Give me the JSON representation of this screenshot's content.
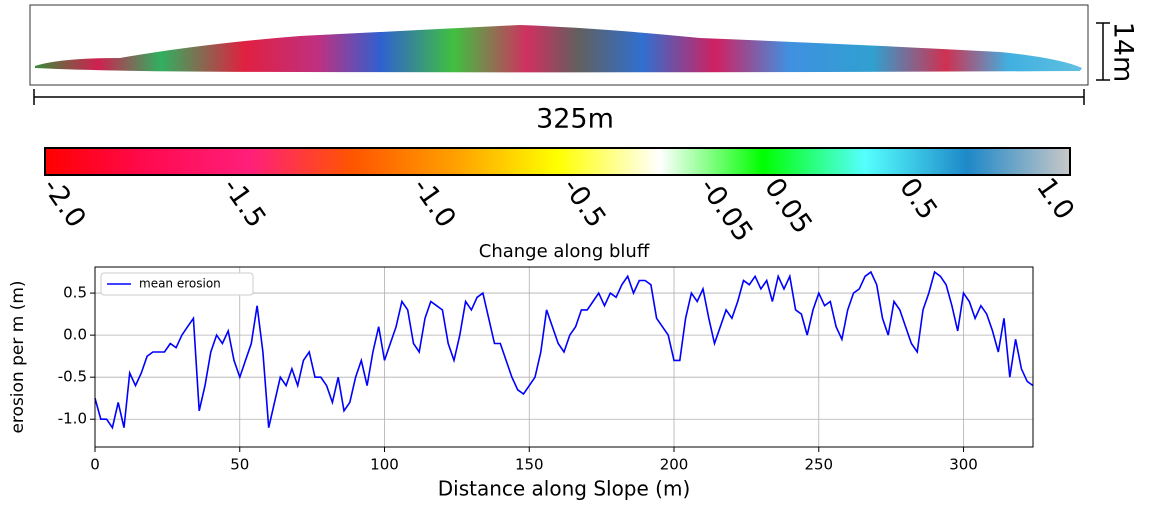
{
  "figure": {
    "width_label": "325m",
    "height_label": "14m"
  },
  "chart_data": [
    {
      "type": "colorbar",
      "colors": [
        "#ff0000",
        "#ff0a50",
        "#ff1f7a",
        "#ff5500",
        "#ffa000",
        "#ffff00",
        "#ffffff",
        "#00ff00",
        "#55ffff",
        "#1e88c8",
        "#c8c8c8"
      ],
      "ticks": [
        {
          "value": -2.0,
          "label": "-2.0"
        },
        -1.5,
        {
          "value": -1.0,
          "label": "-1.0"
        },
        -0.5,
        -0.05,
        0.05,
        0.5,
        {
          "value": 1.0,
          "label": "1.0"
        }
      ]
    },
    {
      "type": "line",
      "title": "Change along bluff",
      "xlabel": "Distance along Slope (m)",
      "ylabel": "erosion per m (m)",
      "x": [
        0,
        2,
        4,
        6,
        8,
        10,
        12,
        14,
        16,
        18,
        20,
        22,
        24,
        26,
        28,
        30,
        32,
        34,
        36,
        38,
        40,
        42,
        44,
        46,
        48,
        50,
        52,
        54,
        56,
        58,
        60,
        62,
        64,
        66,
        68,
        70,
        72,
        74,
        76,
        78,
        80,
        82,
        84,
        86,
        88,
        90,
        92,
        94,
        96,
        98,
        100,
        102,
        104,
        106,
        108,
        110,
        112,
        114,
        116,
        118,
        120,
        122,
        124,
        126,
        128,
        130,
        132,
        134,
        136,
        138,
        140,
        142,
        144,
        146,
        148,
        150,
        152,
        154,
        156,
        158,
        160,
        162,
        164,
        166,
        168,
        170,
        172,
        174,
        176,
        178,
        180,
        182,
        184,
        186,
        188,
        190,
        192,
        194,
        196,
        198,
        200,
        202,
        204,
        206,
        208,
        210,
        212,
        214,
        216,
        218,
        220,
        222,
        224,
        226,
        228,
        230,
        232,
        234,
        236,
        238,
        240,
        242,
        244,
        246,
        248,
        250,
        252,
        254,
        256,
        258,
        260,
        262,
        264,
        266,
        268,
        270,
        272,
        274,
        276,
        278,
        280,
        282,
        284,
        286,
        288,
        290,
        292,
        294,
        296,
        298,
        300,
        302,
        304,
        306,
        308,
        310,
        312,
        314,
        316,
        318,
        320,
        322,
        324
      ],
      "series": [
        {
          "name": "mean erosion",
          "color": "#0000ff",
          "values": [
            -0.75,
            -1.0,
            -1.0,
            -1.1,
            -0.8,
            -1.1,
            -0.45,
            -0.6,
            -0.45,
            -0.25,
            -0.2,
            -0.2,
            -0.2,
            -0.1,
            -0.15,
            0.0,
            0.1,
            0.2,
            -0.9,
            -0.6,
            -0.2,
            0.0,
            -0.1,
            0.05,
            -0.3,
            -0.5,
            -0.3,
            -0.1,
            0.35,
            -0.2,
            -1.1,
            -0.8,
            -0.5,
            -0.6,
            -0.4,
            -0.6,
            -0.3,
            -0.2,
            -0.5,
            -0.5,
            -0.6,
            -0.8,
            -0.5,
            -0.9,
            -0.8,
            -0.5,
            -0.3,
            -0.6,
            -0.2,
            0.1,
            -0.3,
            -0.1,
            0.1,
            0.4,
            0.3,
            -0.1,
            -0.2,
            0.2,
            0.4,
            0.35,
            0.3,
            -0.1,
            -0.3,
            0.0,
            0.4,
            0.3,
            0.45,
            0.5,
            0.2,
            -0.1,
            -0.1,
            -0.3,
            -0.5,
            -0.65,
            -0.7,
            -0.6,
            -0.5,
            -0.2,
            0.3,
            0.1,
            -0.1,
            -0.2,
            0.0,
            0.1,
            0.3,
            0.3,
            0.4,
            0.5,
            0.35,
            0.5,
            0.45,
            0.6,
            0.7,
            0.5,
            0.65,
            0.65,
            0.6,
            0.2,
            0.1,
            0.0,
            -0.3,
            -0.3,
            0.2,
            0.5,
            0.4,
            0.55,
            0.2,
            -0.1,
            0.1,
            0.3,
            0.2,
            0.4,
            0.65,
            0.6,
            0.7,
            0.55,
            0.65,
            0.4,
            0.7,
            0.55,
            0.7,
            0.3,
            0.25,
            0.0,
            0.3,
            0.5,
            0.35,
            0.4,
            0.1,
            -0.05,
            0.3,
            0.5,
            0.55,
            0.7,
            0.75,
            0.6,
            0.2,
            0.0,
            0.4,
            0.3,
            0.1,
            -0.1,
            -0.2,
            0.3,
            0.5,
            0.75,
            0.7,
            0.6,
            0.35,
            0.05,
            0.5,
            0.4,
            0.2,
            0.35,
            0.25,
            0.05,
            -0.2,
            0.2,
            -0.5,
            -0.05,
            -0.4,
            -0.55,
            -0.6
          ]
        }
      ],
      "xlim": [
        0,
        324
      ],
      "ylim": [
        -1.33,
        0.81
      ],
      "xticks": [
        0,
        50,
        100,
        150,
        200,
        250,
        300
      ],
      "yticks": [
        {
          "value": -1.0,
          "label": "-1.0"
        },
        -0.5,
        {
          "value": 0.0,
          "label": "0.0"
        },
        0.5
      ],
      "grid": true,
      "legend": "upper left"
    }
  ]
}
